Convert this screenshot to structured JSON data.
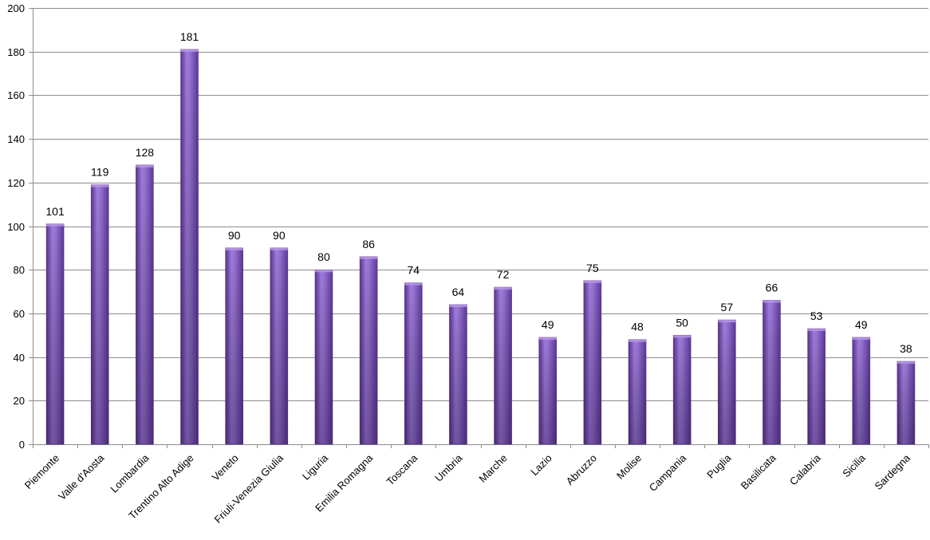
{
  "chart_data": {
    "type": "bar",
    "title": "",
    "xlabel": "",
    "ylabel": "",
    "ylim": [
      0,
      200
    ],
    "yticks": [
      0,
      20,
      40,
      60,
      80,
      100,
      120,
      140,
      160,
      180,
      200
    ],
    "grid": true,
    "legend": "none",
    "bar_color": "#8a5fc7",
    "bar_color_dark": "#4a2a7a",
    "gridline_color": "#8c8c8c",
    "categories": [
      "Piemonte",
      "Valle d'Aosta",
      "Lombardia",
      "Trentino Alto Adige",
      "Veneto",
      "Friuli-Venezia Giulia",
      "Liguria",
      "Emilia Romagna",
      "Toscana",
      "Umbria",
      "Marche",
      "Lazio",
      "Abruzzo",
      "Molise",
      "Campania",
      "Puglia",
      "Basilicata",
      "Calabria",
      "Sicilia",
      "Sardegna"
    ],
    "values": [
      101,
      119,
      128,
      181,
      90,
      90,
      80,
      86,
      74,
      64,
      72,
      49,
      75,
      48,
      50,
      57,
      66,
      53,
      49,
      38
    ]
  }
}
